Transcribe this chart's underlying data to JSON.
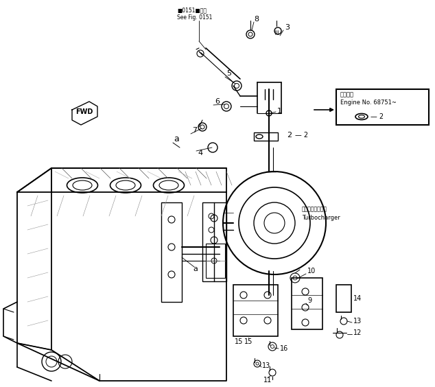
{
  "bg": "#ffffff",
  "lc": "#000000",
  "fw": 6.34,
  "fh": 5.64,
  "dpi": 100,
  "see_fig_text": "■0151■参照\nSee Fig. 0151",
  "fwd_text": "FWD",
  "turbo_jp": "ターボチャージャ",
  "turbo_en": "Turbocharger",
  "engine_no_title": "適用番号",
  "engine_no": "Engine No. 68751~",
  "label_a": "a",
  "part_label_2": "— 2",
  "arrow_label_2": "— 2"
}
